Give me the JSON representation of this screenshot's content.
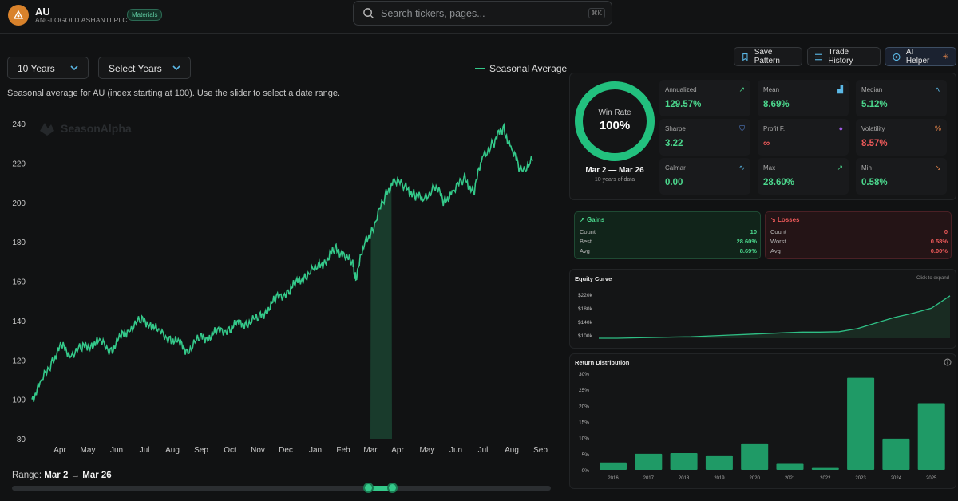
{
  "header": {
    "ticker": "AU",
    "company": "ANGLOGOLD ASHANTI PLC",
    "sector": "Materials",
    "search_placeholder": "Search tickers, pages...",
    "search_shortcut": "⌘K"
  },
  "controls": {
    "period_select": "10 Years",
    "years_select": "Select Years",
    "legend_label": "Seasonal Average",
    "description": "Seasonal average for AU (index starting at 100). Use the slider to select a date range.",
    "watermark": "SeasonAlpha",
    "range_prefix": "Range:",
    "range_start": "Mar 2",
    "range_arrow": "→",
    "range_end": "Mar 26",
    "slider_start_fraction": 0.66,
    "slider_end_fraction": 0.705
  },
  "actions": {
    "save_pattern": "Save Pattern",
    "trade_history": "Trade History",
    "ai_helper": "AI Helper"
  },
  "summary": {
    "win_rate_label": "Win Rate",
    "win_rate_value": "100%",
    "win_rate_fraction": 1.0,
    "date_range": "Mar 2 — Mar 26",
    "years_note": "10 years of data"
  },
  "stats": [
    {
      "label": "Annualized",
      "value": "129.57%",
      "color": "#4cd98e",
      "icon": "trend-up-icon"
    },
    {
      "label": "Mean",
      "value": "8.69%",
      "color": "#4cd98e",
      "icon": "bar-chart-icon"
    },
    {
      "label": "Median",
      "value": "5.12%",
      "color": "#4cd98e",
      "icon": "activity-icon"
    },
    {
      "label": "Sharpe",
      "value": "3.22",
      "color": "#4cd98e",
      "icon": "shield-icon"
    },
    {
      "label": "Profit F.",
      "value": "∞",
      "color": "#ef5a5a",
      "icon": "target-icon"
    },
    {
      "label": "Volatility",
      "value": "8.57%",
      "color": "#ef5a5a",
      "icon": "percent-icon"
    },
    {
      "label": "Calmar",
      "value": "0.00",
      "color": "#4cd98e",
      "icon": "pulse-icon"
    },
    {
      "label": "Max",
      "value": "28.60%",
      "color": "#4cd98e",
      "icon": "trend-up-icon"
    },
    {
      "label": "Min",
      "value": "0.58%",
      "color": "#4cd98e",
      "icon": "trend-down-icon"
    }
  ],
  "gains": {
    "title": "Gains",
    "rows": [
      {
        "label": "Count",
        "value": "10"
      },
      {
        "label": "Best",
        "value": "28.60%"
      },
      {
        "label": "Avg",
        "value": "8.69%"
      }
    ]
  },
  "losses": {
    "title": "Losses",
    "rows": [
      {
        "label": "Count",
        "value": "0"
      },
      {
        "label": "Worst",
        "value": "0.58%"
      },
      {
        "label": "Avg",
        "value": "0.00%"
      }
    ]
  },
  "equity": {
    "title": "Equity Curve",
    "hint": "Click to expand",
    "y_ticks": [
      "$220k",
      "$180k",
      "$140k",
      "$100k"
    ]
  },
  "distribution": {
    "title": "Return Distribution"
  },
  "colors": {
    "accent": "#34c98a",
    "positive": "#4cd98e",
    "negative": "#ef5a5a",
    "bar": "#1f9a66"
  },
  "chart_data": [
    {
      "type": "line",
      "title": "",
      "ylim": [
        80,
        240
      ],
      "y_ticks": [
        80,
        100,
        120,
        140,
        160,
        180,
        200,
        220,
        240
      ],
      "x_tick_labels": [
        "Apr",
        "May",
        "Jun",
        "Jul",
        "Aug",
        "Sep",
        "Oct",
        "Nov",
        "Dec",
        "Jan",
        "Feb",
        "Mar",
        "Apr",
        "May",
        "Jun",
        "Jul",
        "Aug",
        "Sep"
      ],
      "series": [
        {
          "name": "Seasonal Average",
          "x": [
            0,
            0.3,
            0.7,
            1.0,
            1.3,
            1.7,
            2.0,
            2.3,
            2.7,
            3.0,
            3.3,
            3.7,
            4.0,
            4.3,
            4.7,
            5.0,
            5.3,
            5.7,
            6.0,
            6.3,
            6.7,
            7.0,
            7.3,
            7.7,
            8.0,
            8.3,
            8.7,
            9.0,
            9.3,
            9.7,
            10.0,
            10.3,
            10.6,
            10.9,
            11.0,
            11.3,
            11.6,
            12.0,
            12.3,
            12.7,
            13.0,
            13.3,
            13.7,
            14.0,
            14.3,
            14.7,
            15.0,
            15.3,
            15.7,
            16.0,
            16.3,
            16.6,
            17.0
          ],
          "values": [
            100,
            108,
            120,
            127,
            123,
            126,
            128,
            129,
            125,
            131,
            136,
            140,
            139,
            134,
            131,
            128,
            125,
            131,
            132,
            134,
            136,
            138,
            139,
            141,
            146,
            151,
            155,
            159,
            163,
            167,
            171,
            176,
            174,
            168,
            162,
            179,
            188,
            203,
            212,
            207,
            204,
            201,
            209,
            200,
            206,
            212,
            205,
            223,
            231,
            238,
            227,
            216,
            221
          ]
        }
      ],
      "highlight_range": [
        "Mar 2",
        "Mar 26"
      ]
    },
    {
      "type": "area",
      "title": "Equity Curve",
      "y_ticks": [
        "$100k",
        "$140k",
        "$180k",
        "$220k"
      ],
      "series": [
        {
          "values": [
            100,
            100,
            101,
            102,
            103,
            104,
            106,
            108,
            110,
            112,
            114,
            116,
            116,
            117,
            125,
            140,
            154,
            165,
            178,
            210
          ]
        }
      ]
    },
    {
      "type": "bar",
      "title": "Return Distribution",
      "categories": [
        "2016",
        "2017",
        "2018",
        "2019",
        "2020",
        "2021",
        "2022",
        "2023",
        "2024",
        "2025"
      ],
      "values": [
        2.3,
        5.0,
        5.2,
        4.5,
        8.2,
        2.1,
        0.6,
        28.6,
        9.7,
        20.7
      ],
      "y_ticks": [
        "30%",
        "25%",
        "20%",
        "15%",
        "10%",
        "5%",
        "0%"
      ],
      "ylim": [
        0,
        30
      ]
    }
  ]
}
